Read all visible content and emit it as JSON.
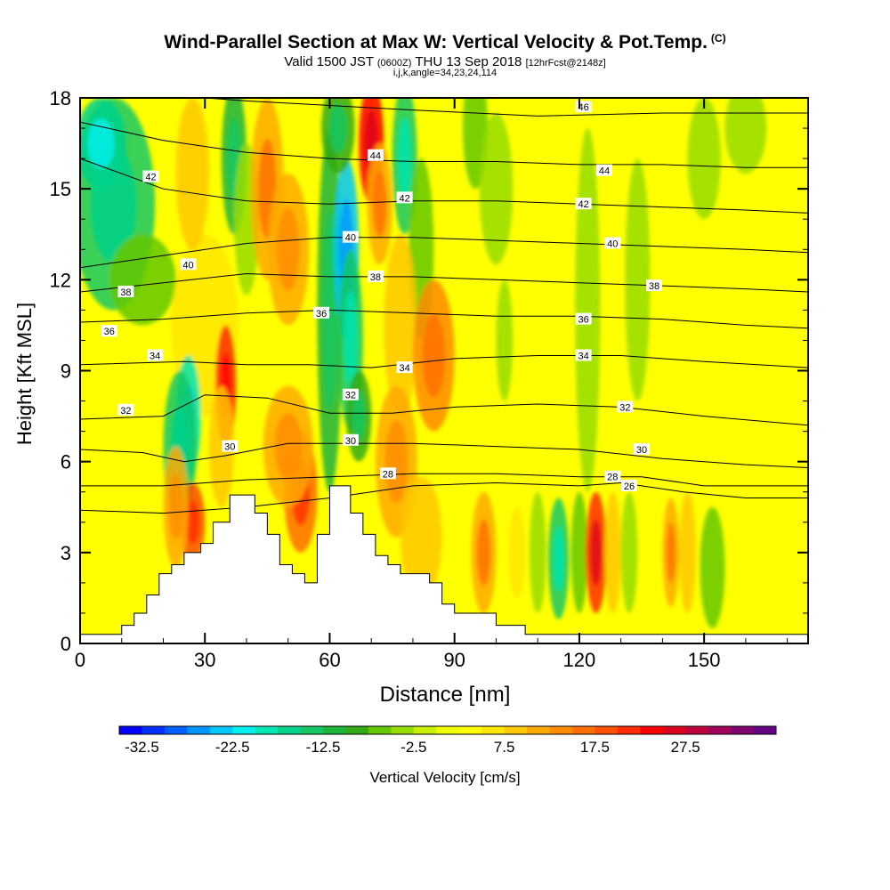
{
  "title": {
    "main": "Wind-Parallel Section at Max W: Vertical Velocity & Pot.Temp.",
    "mark": "(C)",
    "valid_prefix": "Valid 1500 JST",
    "valid_utc": "(0600Z)",
    "valid_date": "THU 13 Sep 2018",
    "forecast": "[12hrFcst@2148z]",
    "indices": "i,j,k,angle=34,23,24,114"
  },
  "chart_data": {
    "type": "heatmap",
    "xlabel": "Distance [nm]",
    "ylabel": "Height [Kft MSL]",
    "xlim": [
      0,
      175
    ],
    "ylim": [
      0,
      18
    ],
    "x_ticks": [
      0,
      30,
      60,
      90,
      120,
      150
    ],
    "y_ticks": [
      0,
      3,
      6,
      9,
      12,
      15,
      18
    ],
    "terrain_steps": [
      [
        0,
        0.3
      ],
      [
        10,
        0.6
      ],
      [
        13,
        1.0
      ],
      [
        16,
        1.6
      ],
      [
        19,
        2.3
      ],
      [
        22,
        2.6
      ],
      [
        25,
        3.0
      ],
      [
        29,
        3.3
      ],
      [
        32,
        4.0
      ],
      [
        36,
        4.9
      ],
      [
        42,
        4.3
      ],
      [
        45,
        3.6
      ],
      [
        48,
        2.6
      ],
      [
        51,
        2.3
      ],
      [
        54,
        2.0
      ],
      [
        57,
        3.6
      ],
      [
        60,
        5.2
      ],
      [
        65,
        4.3
      ],
      [
        68,
        3.6
      ],
      [
        71,
        2.9
      ],
      [
        74,
        2.6
      ],
      [
        77,
        2.3
      ],
      [
        84,
        2.0
      ],
      [
        87,
        1.3
      ],
      [
        90,
        1.0
      ],
      [
        100,
        0.6
      ],
      [
        107,
        0.3
      ],
      [
        175,
        0.3
      ]
    ],
    "velocity_cells": [
      {
        "x": 8,
        "y": 14.5,
        "w": -14,
        "rx": 10,
        "ry": 3.5
      },
      {
        "x": 5,
        "y": 16.5,
        "w": -18,
        "rx": 6,
        "ry": 1.5
      },
      {
        "x": 15,
        "y": 12.0,
        "w": -8,
        "rx": 8,
        "ry": 1.5
      },
      {
        "x": 30,
        "y": 10.5,
        "w": 6,
        "rx": 8,
        "ry": 3
      },
      {
        "x": 27,
        "y": 15.5,
        "w": 7,
        "rx": 4,
        "ry": 2.5
      },
      {
        "x": 37,
        "y": 16,
        "w": -12,
        "rx": 3,
        "ry": 2.5
      },
      {
        "x": 40,
        "y": 14,
        "w": -6,
        "rx": 3,
        "ry": 2.5
      },
      {
        "x": 45,
        "y": 15,
        "w": 10,
        "rx": 4,
        "ry": 3
      },
      {
        "x": 50,
        "y": 13,
        "w": 9,
        "rx": 5,
        "ry": 2.5
      },
      {
        "x": 26,
        "y": 7.5,
        "w": -20,
        "rx": 3,
        "ry": 2
      },
      {
        "x": 24,
        "y": 6.5,
        "w": -14,
        "rx": 4,
        "ry": 2.5
      },
      {
        "x": 35,
        "y": 8.5,
        "w": 19,
        "rx": 2.5,
        "ry": 2
      },
      {
        "x": 34,
        "y": 6.5,
        "w": 8,
        "rx": 3,
        "ry": 2
      },
      {
        "x": 27,
        "y": 4.0,
        "w": 17,
        "rx": 3,
        "ry": 1.3
      },
      {
        "x": 23,
        "y": 4.5,
        "w": 9,
        "rx": 3,
        "ry": 2
      },
      {
        "x": 53,
        "y": 5.0,
        "w": 16,
        "rx": 4,
        "ry": 2
      },
      {
        "x": 50,
        "y": 6.5,
        "w": 9,
        "rx": 6,
        "ry": 2
      },
      {
        "x": 60,
        "y": 11,
        "w": -12,
        "rx": 3,
        "ry": 6
      },
      {
        "x": 64,
        "y": 13,
        "w": -24,
        "rx": 3,
        "ry": 3
      },
      {
        "x": 65,
        "y": 10,
        "w": -15,
        "rx": 3,
        "ry": 3
      },
      {
        "x": 67,
        "y": 7.5,
        "w": -10,
        "rx": 3,
        "ry": 1.5
      },
      {
        "x": 70,
        "y": 16.5,
        "w": 22,
        "rx": 3,
        "ry": 2
      },
      {
        "x": 72,
        "y": 14.5,
        "w": 10,
        "rx": 3,
        "ry": 2
      },
      {
        "x": 62,
        "y": 17,
        "w": -10,
        "rx": 4,
        "ry": 1.5
      },
      {
        "x": 78,
        "y": 16,
        "w": -16,
        "rx": 3,
        "ry": 2.5
      },
      {
        "x": 82,
        "y": 13,
        "w": -8,
        "rx": 3,
        "ry": 3
      },
      {
        "x": 77,
        "y": 10.5,
        "w": 8,
        "rx": 4,
        "ry": 3
      },
      {
        "x": 85,
        "y": 9.5,
        "w": 12,
        "rx": 5,
        "ry": 2.5
      },
      {
        "x": 76,
        "y": 6,
        "w": 9,
        "rx": 5,
        "ry": 2.5
      },
      {
        "x": 82,
        "y": 3.5,
        "w": 7,
        "rx": 5,
        "ry": 2
      },
      {
        "x": 95,
        "y": 17,
        "w": -7,
        "rx": 3,
        "ry": 2
      },
      {
        "x": 100,
        "y": 15,
        "w": -5,
        "rx": 4,
        "ry": 2.5
      },
      {
        "x": 102,
        "y": 10,
        "w": -6,
        "rx": 2,
        "ry": 2
      },
      {
        "x": 97,
        "y": 3,
        "w": 10,
        "rx": 3,
        "ry": 2
      },
      {
        "x": 105,
        "y": 3,
        "w": 6,
        "rx": 2,
        "ry": 1.5
      },
      {
        "x": 110,
        "y": 3,
        "w": -5,
        "rx": 2,
        "ry": 2
      },
      {
        "x": 115,
        "y": 2.8,
        "w": -15,
        "rx": 2.5,
        "ry": 2
      },
      {
        "x": 120,
        "y": 3,
        "w": -8,
        "rx": 2,
        "ry": 2
      },
      {
        "x": 124,
        "y": 3,
        "w": 20,
        "rx": 2.5,
        "ry": 2
      },
      {
        "x": 128,
        "y": 3,
        "w": 8,
        "rx": 2,
        "ry": 2
      },
      {
        "x": 132,
        "y": 3,
        "w": -5,
        "rx": 2,
        "ry": 2
      },
      {
        "x": 142,
        "y": 3,
        "w": 10,
        "rx": 2,
        "ry": 1.8
      },
      {
        "x": 146,
        "y": 3,
        "w": 8,
        "rx": 2,
        "ry": 2
      },
      {
        "x": 152,
        "y": 2.5,
        "w": -8,
        "rx": 3,
        "ry": 2
      },
      {
        "x": 122,
        "y": 11,
        "w": -5,
        "rx": 3,
        "ry": 6
      },
      {
        "x": 134,
        "y": 12,
        "w": -4,
        "rx": 3,
        "ry": 4
      },
      {
        "x": 150,
        "y": 16,
        "w": -5,
        "rx": 4,
        "ry": 2
      },
      {
        "x": 160,
        "y": 17,
        "w": -4,
        "rx": 5,
        "ry": 1.5
      }
    ],
    "isentropes": [
      {
        "level": 26,
        "points": [
          [
            0,
            4.4
          ],
          [
            20,
            4.3
          ],
          [
            40,
            4.5
          ],
          [
            60,
            4.8
          ],
          [
            80,
            5.2
          ],
          [
            100,
            5.3
          ],
          [
            120,
            5.2
          ],
          [
            130,
            5.3
          ],
          [
            145,
            5.0
          ],
          [
            160,
            4.8
          ],
          [
            175,
            4.8
          ]
        ]
      },
      {
        "level": 28,
        "points": [
          [
            0,
            5.2
          ],
          [
            20,
            5.2
          ],
          [
            40,
            5.4
          ],
          [
            60,
            5.5
          ],
          [
            80,
            5.6
          ],
          [
            100,
            5.6
          ],
          [
            120,
            5.5
          ],
          [
            135,
            5.5
          ],
          [
            150,
            5.2
          ],
          [
            175,
            5.2
          ]
        ]
      },
      {
        "level": 30,
        "points": [
          [
            0,
            6.4
          ],
          [
            15,
            6.3
          ],
          [
            25,
            6.0
          ],
          [
            35,
            6.2
          ],
          [
            50,
            6.6
          ],
          [
            65,
            6.6
          ],
          [
            80,
            6.6
          ],
          [
            100,
            6.5
          ],
          [
            120,
            6.4
          ],
          [
            140,
            6.1
          ],
          [
            160,
            5.9
          ],
          [
            175,
            5.8
          ]
        ]
      },
      {
        "level": 32,
        "points": [
          [
            0,
            7.4
          ],
          [
            20,
            7.5
          ],
          [
            30,
            8.2
          ],
          [
            45,
            8.1
          ],
          [
            60,
            7.6
          ],
          [
            75,
            7.6
          ],
          [
            90,
            7.8
          ],
          [
            110,
            7.9
          ],
          [
            130,
            7.8
          ],
          [
            150,
            7.5
          ],
          [
            175,
            7.2
          ]
        ]
      },
      {
        "level": 34,
        "points": [
          [
            0,
            9.2
          ],
          [
            25,
            9.3
          ],
          [
            40,
            9.2
          ],
          [
            55,
            9.2
          ],
          [
            70,
            9.1
          ],
          [
            90,
            9.4
          ],
          [
            110,
            9.5
          ],
          [
            130,
            9.5
          ],
          [
            150,
            9.3
          ],
          [
            175,
            9.1
          ]
        ]
      },
      {
        "level": 36,
        "points": [
          [
            0,
            10.6
          ],
          [
            20,
            10.7
          ],
          [
            40,
            10.9
          ],
          [
            60,
            11.0
          ],
          [
            80,
            10.9
          ],
          [
            100,
            10.8
          ],
          [
            120,
            10.8
          ],
          [
            140,
            10.7
          ],
          [
            160,
            10.5
          ],
          [
            175,
            10.4
          ]
        ]
      },
      {
        "level": 38,
        "points": [
          [
            0,
            11.6
          ],
          [
            20,
            11.9
          ],
          [
            40,
            12.2
          ],
          [
            60,
            12.1
          ],
          [
            80,
            12.1
          ],
          [
            100,
            12.0
          ],
          [
            120,
            11.9
          ],
          [
            140,
            11.8
          ],
          [
            160,
            11.7
          ],
          [
            175,
            11.6
          ]
        ]
      },
      {
        "level": 40,
        "points": [
          [
            0,
            12.4
          ],
          [
            20,
            12.8
          ],
          [
            40,
            13.2
          ],
          [
            60,
            13.4
          ],
          [
            80,
            13.4
          ],
          [
            100,
            13.3
          ],
          [
            120,
            13.2
          ],
          [
            140,
            13.1
          ],
          [
            160,
            13.0
          ],
          [
            175,
            12.9
          ]
        ]
      },
      {
        "level": 42,
        "points": [
          [
            0,
            16.0
          ],
          [
            20,
            15.0
          ],
          [
            40,
            14.6
          ],
          [
            60,
            14.5
          ],
          [
            80,
            14.6
          ],
          [
            100,
            14.6
          ],
          [
            120,
            14.5
          ],
          [
            140,
            14.4
          ],
          [
            160,
            14.3
          ],
          [
            175,
            14.2
          ]
        ]
      },
      {
        "level": 44,
        "points": [
          [
            0,
            17.2
          ],
          [
            20,
            16.6
          ],
          [
            40,
            16.2
          ],
          [
            60,
            16.0
          ],
          [
            80,
            15.9
          ],
          [
            100,
            15.9
          ],
          [
            120,
            15.8
          ],
          [
            140,
            15.8
          ],
          [
            160,
            15.7
          ],
          [
            175,
            15.7
          ]
        ]
      },
      {
        "level": 46,
        "points": [
          [
            0,
            18.3
          ],
          [
            40,
            17.9
          ],
          [
            80,
            17.6
          ],
          [
            110,
            17.4
          ],
          [
            140,
            17.5
          ],
          [
            175,
            17.5
          ]
        ]
      }
    ],
    "contour_labels": [
      {
        "text": "42",
        "x": 17,
        "y": 15.4
      },
      {
        "text": "40",
        "x": 26,
        "y": 12.5
      },
      {
        "text": "38",
        "x": 11,
        "y": 11.6
      },
      {
        "text": "36",
        "x": 7,
        "y": 10.3
      },
      {
        "text": "34",
        "x": 18,
        "y": 9.5
      },
      {
        "text": "32",
        "x": 11,
        "y": 7.7
      },
      {
        "text": "30",
        "x": 36,
        "y": 6.5
      },
      {
        "text": "44",
        "x": 71,
        "y": 16.1
      },
      {
        "text": "42",
        "x": 78,
        "y": 14.7
      },
      {
        "text": "40",
        "x": 65,
        "y": 13.4
      },
      {
        "text": "38",
        "x": 71,
        "y": 12.1
      },
      {
        "text": "36",
        "x": 58,
        "y": 10.9
      },
      {
        "text": "34",
        "x": 78,
        "y": 9.1
      },
      {
        "text": "32",
        "x": 65,
        "y": 8.2
      },
      {
        "text": "30",
        "x": 65,
        "y": 6.7
      },
      {
        "text": "28",
        "x": 74,
        "y": 5.6
      },
      {
        "text": "46",
        "x": 121,
        "y": 17.7
      },
      {
        "text": "44",
        "x": 126,
        "y": 15.6
      },
      {
        "text": "42",
        "x": 121,
        "y": 14.5
      },
      {
        "text": "40",
        "x": 128,
        "y": 13.2
      },
      {
        "text": "38",
        "x": 138,
        "y": 11.8
      },
      {
        "text": "36",
        "x": 121,
        "y": 10.7
      },
      {
        "text": "34",
        "x": 121,
        "y": 9.5
      },
      {
        "text": "32",
        "x": 131,
        "y": 7.8
      },
      {
        "text": "30",
        "x": 135,
        "y": 6.4
      },
      {
        "text": "28",
        "x": 128,
        "y": 5.5
      },
      {
        "text": "26",
        "x": 132,
        "y": 5.2
      }
    ],
    "colorbar": {
      "label": "Vertical Velocity [cm/s]",
      "tick_labels": [
        "-32.5",
        "-22.5",
        "-12.5",
        "-2.5",
        "7.5",
        "17.5",
        "27.5"
      ],
      "colors": [
        "#0000ff",
        "#0030ff",
        "#0060ff",
        "#0096ff",
        "#00c8ff",
        "#00f0f0",
        "#00e6b4",
        "#00d28c",
        "#14c864",
        "#1eb43c",
        "#32aa14",
        "#64c800",
        "#96dc00",
        "#c8f000",
        "#f0ff00",
        "#ffff00",
        "#ffe600",
        "#ffc800",
        "#ffaa00",
        "#ff8c00",
        "#ff6e00",
        "#ff5000",
        "#ff2d00",
        "#ff0000",
        "#dc001e",
        "#be003c",
        "#a0005a",
        "#82006e",
        "#640082"
      ]
    }
  }
}
